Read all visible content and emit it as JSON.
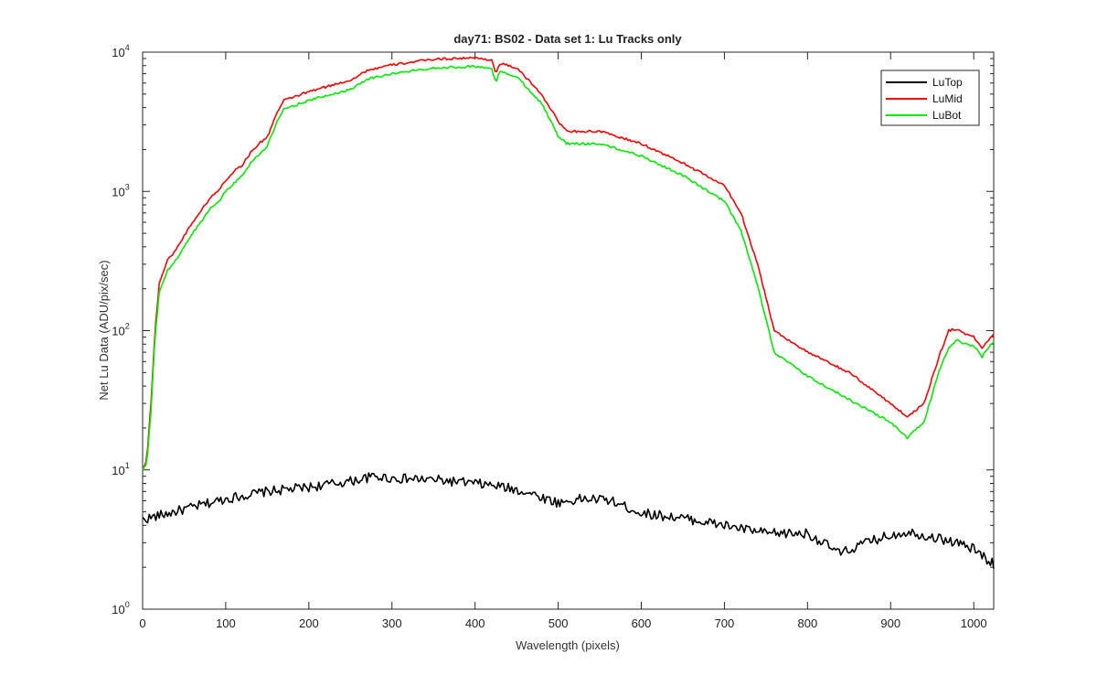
{
  "chart_data": {
    "type": "line",
    "title": "day71: BS02 - Data set 1: Lu Tracks only",
    "xlabel": "Wavelength (pixels)",
    "ylabel": "Net Lu Data (ADU/pix/sec)",
    "xlim": [
      0,
      1024
    ],
    "ylim": [
      1,
      10000
    ],
    "yscale": "log",
    "x_ticks": [
      0,
      100,
      200,
      300,
      400,
      500,
      600,
      700,
      800,
      900,
      1000
    ],
    "y_ticks": [
      {
        "base": "10",
        "exp": "0",
        "value": 1
      },
      {
        "base": "10",
        "exp": "1",
        "value": 10
      },
      {
        "base": "10",
        "exp": "2",
        "value": 100
      },
      {
        "base": "10",
        "exp": "3",
        "value": 1000
      },
      {
        "base": "10",
        "exp": "4",
        "value": 10000
      }
    ],
    "grid": false,
    "legend_position": "top-right",
    "series": [
      {
        "name": "LuTop",
        "color": "#000000",
        "x": [
          0,
          20,
          50,
          100,
          150,
          200,
          250,
          280,
          300,
          350,
          400,
          430,
          460,
          500,
          530,
          560,
          600,
          650,
          700,
          750,
          800,
          840,
          870,
          900,
          920,
          950,
          980,
          1000,
          1024
        ],
        "y": [
          4.4,
          4.7,
          5.2,
          6.2,
          7.0,
          7.5,
          8.3,
          9.0,
          8.7,
          8.5,
          8.0,
          7.6,
          7.0,
          5.8,
          6.2,
          6.1,
          4.9,
          4.5,
          4.0,
          3.5,
          3.5,
          2.5,
          3.0,
          3.4,
          3.6,
          3.3,
          3.0,
          2.7,
          2.1
        ]
      },
      {
        "name": "LuMid",
        "color": "#ff0000",
        "x": [
          0,
          5,
          10,
          15,
          20,
          30,
          40,
          50,
          60,
          70,
          80,
          90,
          100,
          110,
          120,
          130,
          140,
          150,
          160,
          170,
          200,
          250,
          260,
          270,
          300,
          350,
          400,
          420,
          425,
          430,
          450,
          480,
          500,
          510,
          550,
          600,
          650,
          700,
          720,
          740,
          760,
          800,
          850,
          900,
          920,
          940,
          960,
          970,
          980,
          990,
          1000,
          1010,
          1024
        ],
        "y": [
          10,
          12,
          30,
          100,
          220,
          320,
          380,
          480,
          600,
          720,
          880,
          1000,
          1200,
          1400,
          1550,
          1900,
          2200,
          2450,
          3500,
          4500,
          5200,
          6300,
          6800,
          7400,
          8100,
          8900,
          9100,
          8800,
          7000,
          8300,
          7700,
          5000,
          3200,
          2700,
          2700,
          2200,
          1600,
          1100,
          700,
          300,
          100,
          70,
          50,
          30,
          24,
          30,
          70,
          100,
          103,
          95,
          90,
          75,
          95
        ]
      },
      {
        "name": "LuBot",
        "color": "#00ee00",
        "x": [
          0,
          5,
          10,
          15,
          20,
          30,
          40,
          50,
          60,
          70,
          80,
          90,
          100,
          110,
          120,
          130,
          140,
          150,
          160,
          170,
          200,
          250,
          260,
          270,
          300,
          350,
          400,
          420,
          425,
          430,
          450,
          480,
          500,
          510,
          550,
          600,
          650,
          700,
          720,
          740,
          760,
          800,
          850,
          900,
          920,
          940,
          960,
          970,
          980,
          990,
          1000,
          1010,
          1024
        ],
        "y": [
          10,
          11,
          26,
          90,
          190,
          270,
          320,
          400,
          500,
          600,
          740,
          830,
          1000,
          1150,
          1300,
          1600,
          1850,
          2100,
          3000,
          3900,
          4500,
          5400,
          5900,
          6400,
          7000,
          7700,
          7900,
          7600,
          6100,
          7200,
          6700,
          4300,
          2500,
          2200,
          2200,
          1800,
          1300,
          850,
          520,
          210,
          70,
          47,
          32,
          22,
          17,
          22,
          55,
          75,
          85,
          80,
          78,
          65,
          85
        ]
      }
    ]
  }
}
